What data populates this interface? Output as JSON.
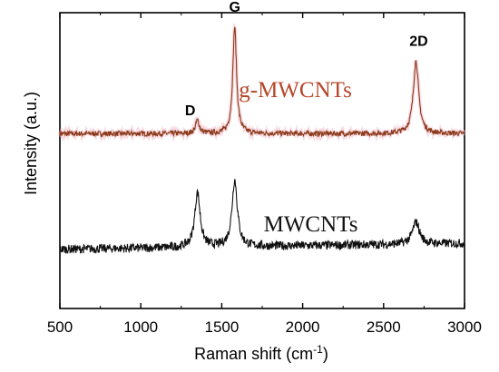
{
  "chart_data": {
    "type": "line",
    "xlabel": "Raman shift (cm",
    "xlabel_sup": "-1",
    "xlabel_end": ")",
    "ylabel": "Intensity (a.u.)",
    "xlim": [
      500,
      3000
    ],
    "ylim": [
      0,
      1
    ],
    "xticks": [
      500,
      1000,
      1500,
      2000,
      2500,
      3000
    ],
    "grid": false,
    "peaks": [
      {
        "label": "D",
        "x": 1350
      },
      {
        "label": "G",
        "x": 1580
      },
      {
        "label": "2D",
        "x": 2700
      }
    ],
    "series": [
      {
        "name": "g-MWCNTs",
        "color": "#8b3a1a",
        "baseline": 0.585,
        "points": [
          [
            500,
            0.585
          ],
          [
            1300,
            0.59
          ],
          [
            1350,
            0.63
          ],
          [
            1400,
            0.59
          ],
          [
            1500,
            0.6
          ],
          [
            1560,
            0.75
          ],
          [
            1580,
            0.955
          ],
          [
            1600,
            0.75
          ],
          [
            1660,
            0.6
          ],
          [
            2500,
            0.6
          ],
          [
            2640,
            0.63
          ],
          [
            2700,
            0.835
          ],
          [
            2760,
            0.63
          ],
          [
            3000,
            0.585
          ]
        ]
      },
      {
        "name": "MWCNTs",
        "color": "#111111",
        "baseline": 0.19,
        "points": [
          [
            500,
            0.17
          ],
          [
            1250,
            0.21
          ],
          [
            1350,
            0.38
          ],
          [
            1450,
            0.24
          ],
          [
            1530,
            0.26
          ],
          [
            1580,
            0.42
          ],
          [
            1620,
            0.3
          ],
          [
            1700,
            0.21
          ],
          [
            2600,
            0.22
          ],
          [
            2700,
            0.27
          ],
          [
            2800,
            0.22
          ],
          [
            3000,
            0.19
          ]
        ]
      }
    ]
  }
}
